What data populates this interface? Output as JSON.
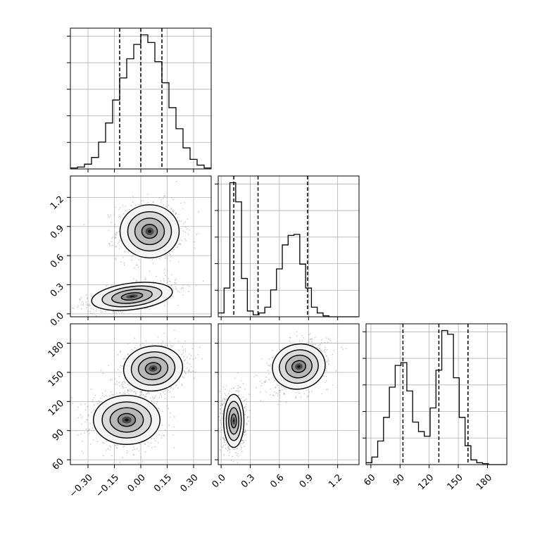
{
  "chart_data": {
    "type": "corner",
    "title": "",
    "grid": true,
    "parameters": [
      {
        "label": "",
        "range": [
          -0.4,
          0.4
        ],
        "ticks": [
          -0.3,
          -0.15,
          0.0,
          0.15,
          0.3
        ],
        "tick_labels": [
          "−0.30",
          "−0.15",
          "0.00",
          "0.15",
          "0.30"
        ],
        "quantiles": [
          -0.12,
          0.0,
          0.12
        ]
      },
      {
        "label": "",
        "range": [
          -0.03,
          1.42
        ],
        "ticks": [
          0.0,
          0.3,
          0.6,
          0.9,
          1.2
        ],
        "tick_labels": [
          "0.0",
          "0.3",
          "0.6",
          "0.9",
          "1.2"
        ],
        "quantiles": [
          0.13,
          0.38,
          0.89
        ]
      },
      {
        "label": "",
        "range": [
          55,
          200
        ],
        "ticks": [
          60,
          90,
          120,
          150,
          180
        ],
        "tick_labels": [
          "60",
          "90",
          "120",
          "150",
          "180"
        ],
        "quantiles": [
          93,
          130,
          160
        ]
      }
    ],
    "histograms": [
      {
        "parameter": 0,
        "bin_edges": [
          -0.4,
          -0.36,
          -0.32,
          -0.28,
          -0.24,
          -0.2,
          -0.16,
          -0.12,
          -0.08,
          -0.04,
          0.0,
          0.04,
          0.08,
          0.12,
          0.16,
          0.2,
          0.24,
          0.28,
          0.32,
          0.36,
          0.4
        ],
        "counts": [
          1,
          2,
          5,
          12,
          28,
          48,
          72,
          95,
          115,
          130,
          140,
          132,
          112,
          90,
          64,
          42,
          22,
          10,
          4,
          1
        ]
      },
      {
        "parameter": 1,
        "bin_edges": [
          -0.03,
          0.03,
          0.09,
          0.15,
          0.21,
          0.27,
          0.33,
          0.39,
          0.45,
          0.51,
          0.57,
          0.63,
          0.69,
          0.75,
          0.81,
          0.87,
          0.93,
          0.99,
          1.05,
          1.11,
          1.17,
          1.23,
          1.29,
          1.35,
          1.41
        ],
        "counts": [
          4,
          30,
          140,
          120,
          40,
          6,
          2,
          4,
          10,
          28,
          50,
          75,
          85,
          86,
          55,
          30,
          10,
          4,
          1,
          0,
          0,
          0,
          0,
          0
        ]
      },
      {
        "parameter": 2,
        "bin_edges": [
          55,
          61,
          67,
          73,
          79,
          85,
          91,
          97,
          103,
          109,
          115,
          121,
          127,
          133,
          139,
          145,
          151,
          157,
          163,
          169,
          175,
          181,
          187,
          193,
          199
        ],
        "counts": [
          2,
          8,
          25,
          50,
          82,
          105,
          108,
          78,
          45,
          35,
          30,
          60,
          100,
          142,
          138,
          92,
          50,
          20,
          5,
          2,
          1,
          0,
          0,
          0
        ]
      }
    ],
    "pairs": [
      {
        "x_param": 0,
        "y_param": 1,
        "clusters": [
          {
            "mean": [
              0.05,
              0.85
            ],
            "sd": [
              0.08,
              0.13
            ],
            "rho": 0.0,
            "weight": 0.5
          },
          {
            "mean": [
              -0.05,
              0.18
            ],
            "sd": [
              0.11,
              0.065
            ],
            "rho": 0.55,
            "weight": 0.5
          }
        ]
      },
      {
        "x_param": 0,
        "y_param": 2,
        "clusters": [
          {
            "mean": [
              0.07,
              154
            ],
            "sd": [
              0.08,
              11
            ],
            "rho": 0.2,
            "weight": 0.5
          },
          {
            "mean": [
              -0.08,
              101
            ],
            "sd": [
              0.09,
              12
            ],
            "rho": 0.0,
            "weight": 0.5
          }
        ]
      },
      {
        "x_param": 1,
        "y_param": 2,
        "clusters": [
          {
            "mean": [
              0.8,
              156
            ],
            "sd": [
              0.13,
              11
            ],
            "rho": 0.35,
            "weight": 0.5
          },
          {
            "mean": [
              0.13,
              100
            ],
            "sd": [
              0.05,
              13
            ],
            "rho": 0.0,
            "weight": 0.5
          }
        ]
      }
    ]
  }
}
